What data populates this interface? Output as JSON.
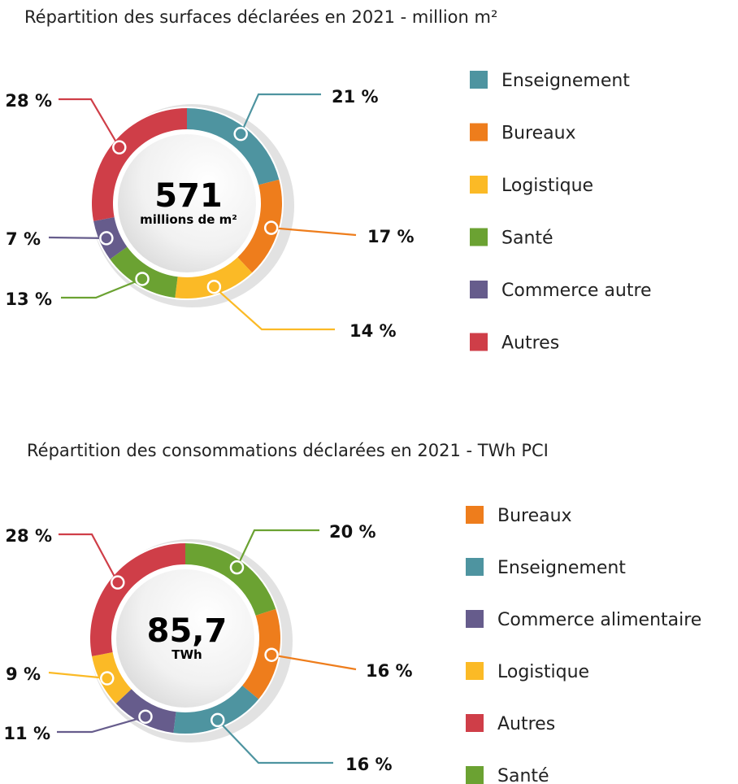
{
  "colors": {
    "Enseignement": "#4E94A0",
    "Bureaux": "#EE7D1C",
    "Logistique": "#FBBA26",
    "Santé": "#6BA232",
    "Commerce autre": "#665C8C",
    "Commerce alimentaire": "#665C8C",
    "Autres": "#CF3E48"
  },
  "chart_data": [
    {
      "type": "pie",
      "donut": true,
      "title": "Répartition des surfaces déclarées en 2021 - million m²",
      "center_value": "571",
      "center_unit": "millions de m²",
      "categories": [
        "Enseignement",
        "Bureaux",
        "Logistique",
        "Santé",
        "Commerce autre",
        "Autres"
      ],
      "values": [
        21,
        17,
        14,
        13,
        7,
        28
      ],
      "labels": [
        "21 %",
        "17 %",
        "14 %",
        "13 %",
        "7 %",
        "28 %"
      ],
      "legend": [
        "Enseignement",
        "Bureaux",
        "Logistique",
        "Santé",
        "Commerce autre",
        "Autres"
      ],
      "legend_placement": "right"
    },
    {
      "type": "pie",
      "donut": true,
      "title": "Répartition des consommations déclarées en 2021 - TWh PCI",
      "center_value": "85,7",
      "center_unit": "TWh",
      "categories": [
        "Santé",
        "Bureaux",
        "Enseignement",
        "Commerce alimentaire",
        "Logistique",
        "Autres"
      ],
      "values": [
        20,
        16,
        16,
        11,
        9,
        28
      ],
      "labels": [
        "20 %",
        "16 %",
        "16 %",
        "11 %",
        "9 %",
        "28 %"
      ],
      "legend": [
        "Bureaux",
        "Enseignement",
        "Commerce alimentaire",
        "Logistique",
        "Autres",
        "Santé"
      ],
      "legend_placement": "right"
    }
  ]
}
